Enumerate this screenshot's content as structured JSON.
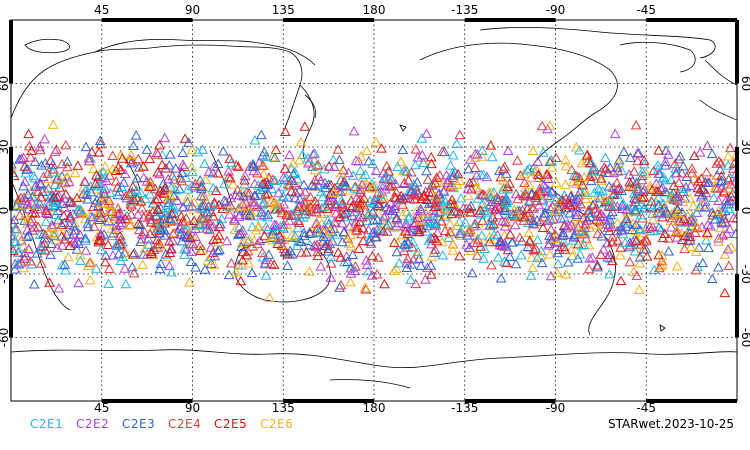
{
  "map": {
    "projection": "equirectangular",
    "center_longitude": 180,
    "lon_ticks": [
      "45",
      "90",
      "135",
      "180",
      "-135",
      "-90",
      "-45"
    ],
    "lat_ticks": [
      "60",
      "30",
      "0",
      "-30",
      "-60"
    ],
    "marker": "open-triangle",
    "lat_band": [
      -45,
      45
    ]
  },
  "legend": [
    {
      "label": "C2E1",
      "color": "#1fb6e8"
    },
    {
      "label": "C2E2",
      "color": "#b23fd9"
    },
    {
      "label": "C2E3",
      "color": "#2f63d6"
    },
    {
      "label": "C2E4",
      "color": "#e23b3b"
    },
    {
      "label": "C2E5",
      "color": "#d8160f"
    },
    {
      "label": "C2E6",
      "color": "#f2b01e"
    }
  ],
  "stamp": "STARwet.2023-10-25"
}
